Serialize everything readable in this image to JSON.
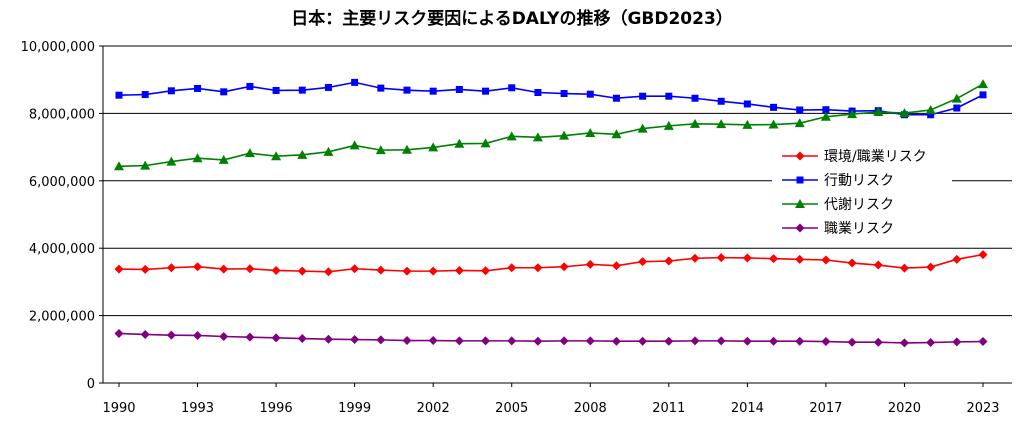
{
  "chart_data": {
    "type": "line",
    "title": "日本：主要リスク要因によるDALYの推移（GBD2023）",
    "xlabel": "",
    "ylabel": "",
    "ylim": [
      0,
      10000000
    ],
    "y_ticks": [
      0,
      2000000,
      4000000,
      6000000,
      8000000,
      10000000
    ],
    "y_tick_labels": [
      "0",
      "2,000,000",
      "4,000,000",
      "6,000,000",
      "8,000,000",
      "10,000,000"
    ],
    "x_tick_labels": [
      "1990",
      "1993",
      "1996",
      "1999",
      "2002",
      "2005",
      "2008",
      "2011",
      "2014",
      "2017",
      "2020",
      "2023"
    ],
    "x": [
      1990,
      1991,
      1992,
      1993,
      1994,
      1995,
      1996,
      1997,
      1998,
      1999,
      2000,
      2001,
      2002,
      2003,
      2004,
      2005,
      2006,
      2007,
      2008,
      2009,
      2010,
      2011,
      2012,
      2013,
      2014,
      2015,
      2016,
      2017,
      2018,
      2019,
      2020,
      2021,
      2022,
      2023
    ],
    "grid": "horizontal",
    "legend_position": "right",
    "series": [
      {
        "name": "環境/職業リスク",
        "color": "#ff0000",
        "marker": "diamond",
        "values": [
          3380000,
          3370000,
          3420000,
          3450000,
          3380000,
          3390000,
          3340000,
          3320000,
          3300000,
          3390000,
          3350000,
          3320000,
          3320000,
          3340000,
          3330000,
          3420000,
          3420000,
          3450000,
          3520000,
          3480000,
          3600000,
          3620000,
          3700000,
          3720000,
          3710000,
          3690000,
          3670000,
          3650000,
          3560000,
          3500000,
          3410000,
          3440000,
          3670000,
          3810000
        ]
      },
      {
        "name": "行動リスク",
        "color": "#0000ff",
        "marker": "square",
        "values": [
          8540000,
          8560000,
          8670000,
          8740000,
          8640000,
          8800000,
          8680000,
          8690000,
          8770000,
          8920000,
          8750000,
          8690000,
          8660000,
          8710000,
          8660000,
          8760000,
          8620000,
          8590000,
          8570000,
          8450000,
          8510000,
          8510000,
          8450000,
          8360000,
          8280000,
          8180000,
          8100000,
          8110000,
          8070000,
          8080000,
          7960000,
          7960000,
          8160000,
          8550000
        ]
      },
      {
        "name": "代謝リスク",
        "color": "#008000",
        "marker": "triangle",
        "values": [
          6430000,
          6450000,
          6570000,
          6670000,
          6620000,
          6820000,
          6730000,
          6770000,
          6860000,
          7050000,
          6910000,
          6920000,
          6990000,
          7100000,
          7110000,
          7320000,
          7290000,
          7340000,
          7420000,
          7380000,
          7550000,
          7630000,
          7690000,
          7680000,
          7660000,
          7670000,
          7710000,
          7900000,
          7980000,
          8040000,
          8010000,
          8100000,
          8440000,
          8870000
        ]
      },
      {
        "name": "職業リスク",
        "color": "#800080",
        "marker": "diamond",
        "values": [
          1470000,
          1440000,
          1420000,
          1410000,
          1380000,
          1360000,
          1340000,
          1320000,
          1300000,
          1290000,
          1280000,
          1260000,
          1260000,
          1250000,
          1250000,
          1250000,
          1240000,
          1250000,
          1250000,
          1240000,
          1240000,
          1240000,
          1250000,
          1250000,
          1240000,
          1240000,
          1240000,
          1230000,
          1210000,
          1210000,
          1190000,
          1200000,
          1220000,
          1230000
        ]
      }
    ]
  }
}
